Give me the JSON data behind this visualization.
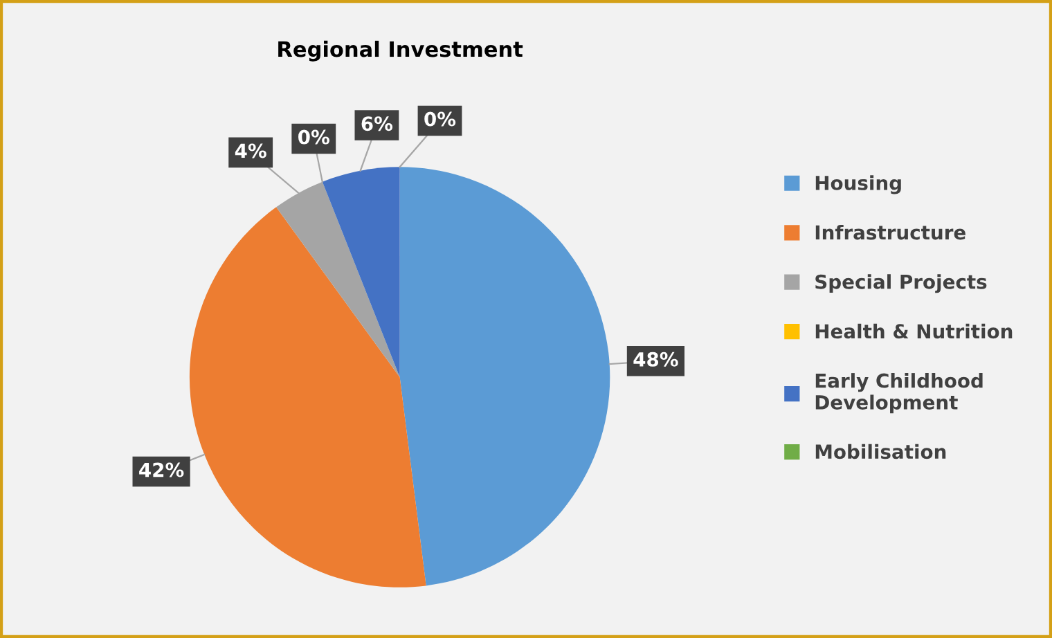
{
  "chart_data": {
    "type": "pie",
    "title": "Regional Investment",
    "categories": [
      "Housing",
      "Infrastructure",
      "Special Projects",
      "Health & Nutrition",
      "Early Childhood Development",
      "Mobilisation"
    ],
    "values": [
      48,
      42,
      4,
      0,
      6,
      0
    ],
    "colors": [
      "#5b9bd5",
      "#ed7d31",
      "#a5a5a5",
      "#ffc000",
      "#4472c4",
      "#70ad47"
    ],
    "value_labels": [
      "48%",
      "42%",
      "4%",
      "0%",
      "6%",
      "0%"
    ],
    "legend": "right"
  }
}
